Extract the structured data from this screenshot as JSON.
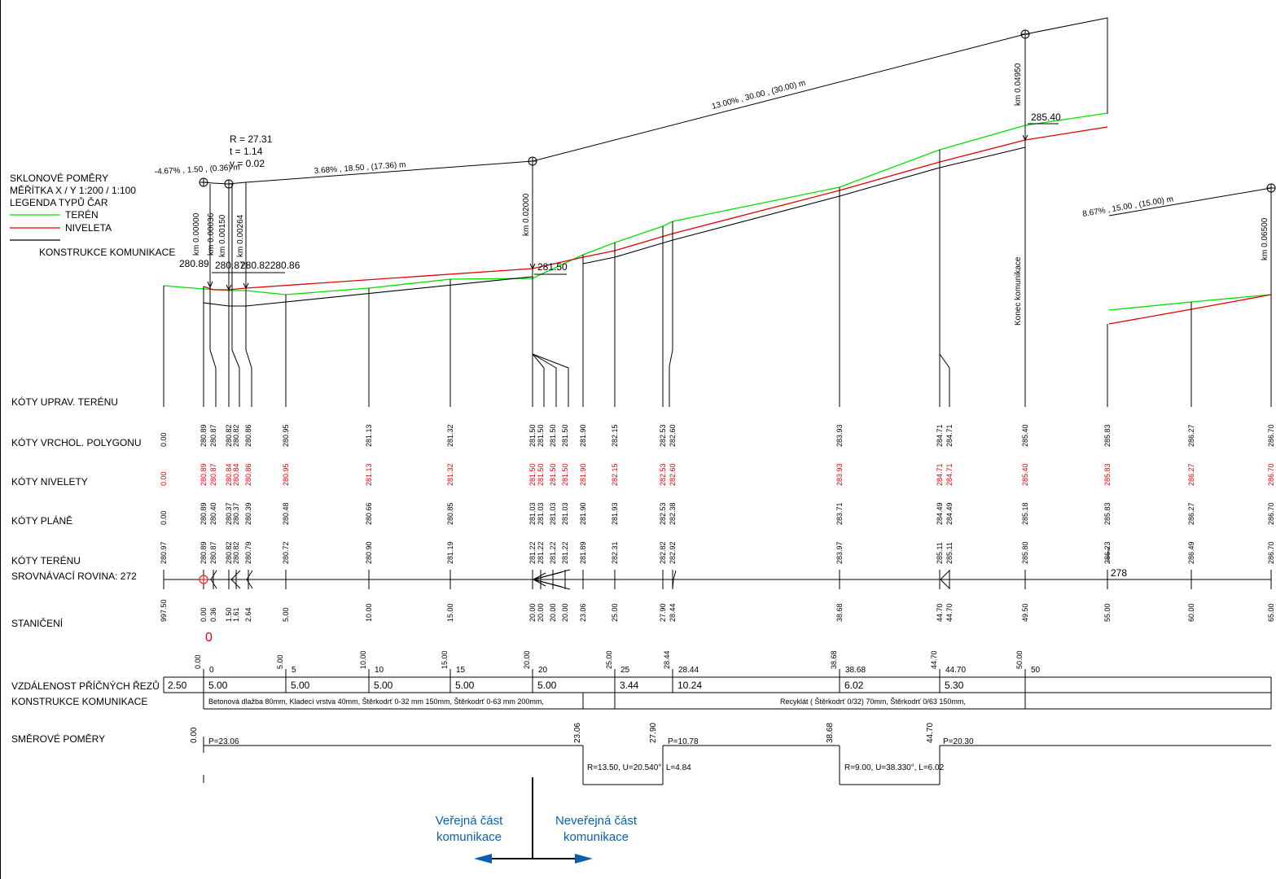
{
  "legend": {
    "title": "SKLONOVÉ POMĚRY",
    "scale": "MĚŘÍTKA X / Y 1:200 / 1:100",
    "types_title": "LEGENDA TYPŮ ČAR",
    "teren": "TERÉN",
    "niveleta": "NIVELETA",
    "konstrukce": "KONSTRUKCE KOMUNIKACE",
    "colors": {
      "teren": "#00e000",
      "niveleta": "#e00000",
      "konstrukce": "#000000"
    }
  },
  "slopes": {
    "s1": "-4.67% , 1.50 , (0.36) m",
    "s2": "3.68% , 18.50 , (17.36) m",
    "s3": "13.00% , 30.00 , (30.00) m",
    "s4": "8.67% , 15.00 , (15.00) m"
  },
  "curve": {
    "r": "R = 27.31",
    "t": "t = 1.14",
    "y": "y = 0.02"
  },
  "km": {
    "k1": "km 0.00000",
    "k2": "km 0.00036",
    "k3": "km 0.00150",
    "k4": "km 0.00264",
    "k5": "km 0.02000",
    "k6": "km 0.04950",
    "k7": "km 0.06500"
  },
  "elev": {
    "e1": "280.89",
    "e2": "280.87",
    "e3": "280.82280.86",
    "e4": "281.50",
    "e5": "285.40"
  },
  "konec": "Konec komunikace",
  "row_labels": {
    "upr_teren": "KÓTY UPRAV. TERÉNU",
    "vrchol": "KÓTY VRCHOL. POLYGONU",
    "niveleta": "KÓTY NIVELETY",
    "plane": "KÓTY PLÁNĚ",
    "teren": "KÓTY TERÉNU",
    "srovnavaci": "SROVNÁVACÍ ROVINA: 272",
    "staniceni": "STANIČENÍ",
    "vzdalenost": "VZDÁLENOST PŘÍČNÝCH ŘEZŮ",
    "konstrukce": "KONSTRUKCE KOMUNIKACE",
    "smerove": "SMĚROVÉ POMĚRY"
  },
  "columns": [
    {
      "vrchol": "0.00",
      "niveleta": "0.00",
      "plane": "0.00",
      "teren": "280.97",
      "stan": "997.50"
    },
    {
      "vrchol": "280.89",
      "niveleta": "280.89",
      "plane": "280.89",
      "teren": "280.89",
      "stan": "0.00"
    },
    {
      "vrchol": "280.87",
      "niveleta": "280.87",
      "plane": "280.40",
      "teren": "280.87",
      "stan": "0.36"
    },
    {
      "vrchol": "280.82",
      "niveleta": "280.84",
      "plane": "280.37",
      "teren": "280.82",
      "stan": "1.50"
    },
    {
      "vrchol": "280.82",
      "niveleta": "280.84",
      "plane": "280.37",
      "teren": "280.82",
      "stan": "1.61"
    },
    {
      "vrchol": "280.86",
      "niveleta": "280.86",
      "plane": "280.39",
      "teren": "280.79",
      "stan": "2.64"
    },
    {
      "vrchol": "280.95",
      "niveleta": "280.95",
      "plane": "280.48",
      "teren": "280.72",
      "stan": "5.00"
    },
    {
      "vrchol": "281.13",
      "niveleta": "281.13",
      "plane": "280.66",
      "teren": "280.90",
      "stan": "10.00"
    },
    {
      "vrchol": "281.32",
      "niveleta": "281.32",
      "plane": "280.85",
      "teren": "281.19",
      "stan": "15.00"
    },
    {
      "vrchol": "281.50",
      "niveleta": "281.50",
      "plane": "281.03",
      "teren": "281.22",
      "stan": "20.00"
    },
    {
      "vrchol": "281.50",
      "niveleta": "281.50",
      "plane": "281.03",
      "teren": "281.22",
      "stan": "20.00"
    },
    {
      "vrchol": "281.50",
      "niveleta": "281.50",
      "plane": "281.03",
      "teren": "281.22",
      "stan": "20.00"
    },
    {
      "vrchol": "281.50",
      "niveleta": "281.50",
      "plane": "281.03",
      "teren": "281.22",
      "stan": "20.00"
    },
    {
      "vrchol": "281.90",
      "niveleta": "281.90",
      "plane": "281.90",
      "teren": "281.89",
      "stan": "23.06"
    },
    {
      "vrchol": "282.15",
      "niveleta": "282.15",
      "plane": "281.93",
      "teren": "282.31",
      "stan": "25.00"
    },
    {
      "vrchol": "282.53",
      "niveleta": "282.53",
      "plane": "282.53",
      "teren": "282.82",
      "stan": "27.90"
    },
    {
      "vrchol": "282.60",
      "niveleta": "282.60",
      "plane": "282.38",
      "teren": "282.92",
      "stan": "28.44"
    },
    {
      "vrchol": "283.93",
      "niveleta": "283.93",
      "plane": "283.71",
      "teren": "283.97",
      "stan": "38.68"
    },
    {
      "vrchol": "284.71",
      "niveleta": "284.71",
      "plane": "284.49",
      "teren": "285.11",
      "stan": "44.70"
    },
    {
      "vrchol": "284.71",
      "niveleta": "284.71",
      "plane": "284.49",
      "teren": "285.11",
      "stan": "44.70"
    },
    {
      "vrchol": "285.40",
      "niveleta": "285.40",
      "plane": "285.18",
      "teren": "285.80",
      "stan": "49.50"
    },
    {
      "vrchol": "285.83",
      "niveleta": "285.83",
      "plane": "285.83",
      "teren": "286.23",
      "stan": "55.00"
    },
    {
      "vrchol": "286.27",
      "niveleta": "286.27",
      "plane": "286.27",
      "teren": "286.49",
      "stan": "60.00"
    },
    {
      "vrchol": "286.70",
      "niveleta": "286.70",
      "plane": "286.70",
      "teren": "286.70",
      "stan": "65.00"
    }
  ],
  "marker_278": "278",
  "zero_mark": "0",
  "ruler_rot": [
    "0.00",
    "5.00",
    "10.00",
    "15.00",
    "20.00",
    "25.00",
    "28.44",
    "38.68",
    "44.70",
    "50.00"
  ],
  "ruler_flat": [
    "0",
    "5",
    "10",
    "15",
    "20",
    "25",
    "28.44",
    "38.68",
    "44.70",
    "50"
  ],
  "distances": [
    "2.50",
    "5.00",
    "5.00",
    "5.00",
    "5.00",
    "5.00",
    "3.44",
    "10.24",
    "6.02",
    "5.30"
  ],
  "konstrukce_text": {
    "a": "Betonová dlažba 80mm, Kladecí vrstva 40mm, Štěrkodrť 0-32 mm 150mm, Štěrkodrť 0-63 mm 200mm,",
    "b": "Recyklát ( Štěrkodrť 0/32) 70mm, Štěrkodrť 0/63 150mm,"
  },
  "smerove": {
    "st": [
      "0.00",
      "23.06",
      "27.90",
      "38.68",
      "44.70"
    ],
    "p1": "P=23.06",
    "p2": "P=10.78",
    "p3": "P=20.30",
    "r1": "R=13.50, U=20.540°, L=4.84",
    "r2": "R=9.00, U=38.330°, L=6.02"
  },
  "public": {
    "l1": "Veřejná část",
    "l2": "komunikace"
  },
  "nonpublic": {
    "l1": "Neveřejná část",
    "l2": "komunikace"
  }
}
